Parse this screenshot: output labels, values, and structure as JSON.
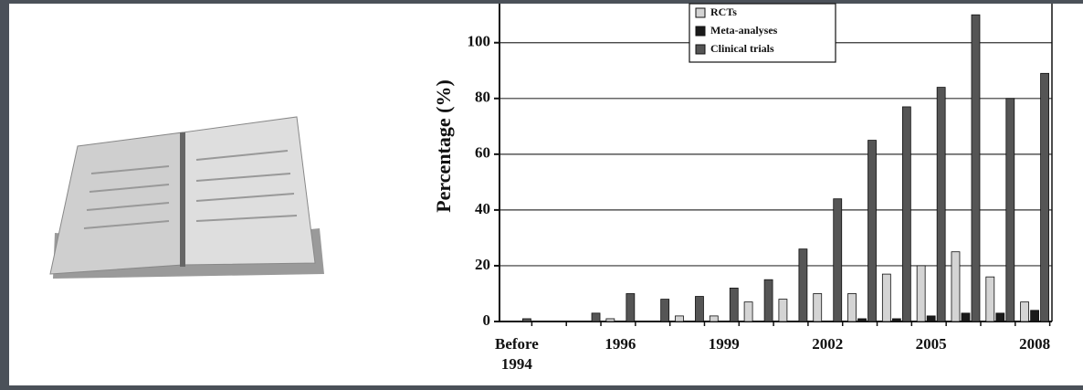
{
  "chart_data": {
    "type": "bar",
    "y_label": "Percentage (%)",
    "categories": [
      "Before 1994",
      null,
      null,
      "1996",
      null,
      null,
      "1999",
      null,
      null,
      "2002",
      null,
      null,
      "2005",
      null,
      null,
      "2008"
    ],
    "series": [
      {
        "name": "RCTs",
        "color": "#d4d4d4",
        "values": [
          0,
          0,
          0,
          1,
          0,
          2,
          2,
          7,
          8,
          10,
          10,
          17,
          20,
          25,
          16,
          7
        ]
      },
      {
        "name": "Meta-analyses",
        "color": "#1a1a1a",
        "values": [
          0,
          0,
          0,
          0,
          0,
          0,
          0,
          0,
          0,
          0,
          1,
          1,
          2,
          3,
          3,
          4
        ]
      },
      {
        "name": "Clinical trials",
        "color": "#555555",
        "values": [
          1,
          0,
          3,
          10,
          8,
          9,
          12,
          15,
          26,
          44,
          65,
          77,
          84,
          110,
          80,
          89
        ]
      }
    ],
    "ylim": [
      0,
      114
    ],
    "yticks": [
      0,
      20,
      40,
      60,
      80,
      100
    ],
    "grid": true,
    "legend": "top"
  }
}
